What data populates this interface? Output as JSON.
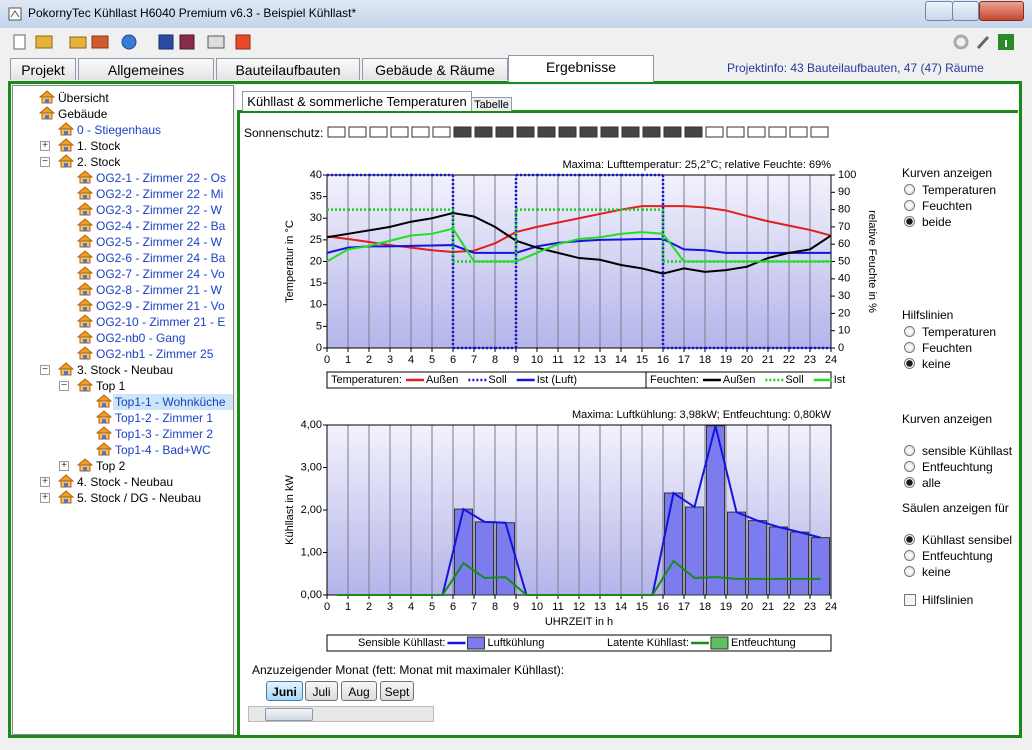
{
  "window": {
    "title": "PokornyTec  Kühllast H6040 Premium v6.3  -  Beispiel Kühllast*"
  },
  "tabs": [
    "Projekt",
    "Allgemeines",
    "Bauteilaufbauten",
    "Gebäude & Räume",
    "Ergebnisse"
  ],
  "active_tab": 4,
  "projektinfo": "Projektinfo: 43 Bauteilaufbauten,  47 (47) Räume",
  "tree": [
    {
      "label": "Übersicht",
      "level": 0,
      "expanded": null
    },
    {
      "label": "Gebäude",
      "level": 0,
      "expanded": null
    },
    {
      "label": "0 - Stiegenhaus",
      "level": 1,
      "expanded": null,
      "color": "#1c3fc4"
    },
    {
      "label": "1. Stock",
      "level": 1,
      "expanded": false
    },
    {
      "label": "2. Stock",
      "level": 1,
      "expanded": true
    },
    {
      "label": "OG2-1 - Zimmer 22 - Os",
      "level": 2,
      "expanded": null,
      "color": "#1c3fc4"
    },
    {
      "label": "OG2-2 - Zimmer 22 - Mi",
      "level": 2,
      "expanded": null,
      "color": "#1c3fc4"
    },
    {
      "label": "OG2-3 - Zimmer 22 - W",
      "level": 2,
      "expanded": null,
      "color": "#1c3fc4"
    },
    {
      "label": "OG2-4 - Zimmer 22 - Ba",
      "level": 2,
      "expanded": null,
      "color": "#1c3fc4"
    },
    {
      "label": "OG2-5 - Zimmer 24 - W",
      "level": 2,
      "expanded": null,
      "color": "#1c3fc4"
    },
    {
      "label": "OG2-6 - Zimmer 24 - Ba",
      "level": 2,
      "expanded": null,
      "color": "#1c3fc4"
    },
    {
      "label": "OG2-7 - Zimmer 24 - Vo",
      "level": 2,
      "expanded": null,
      "color": "#1c3fc4"
    },
    {
      "label": "OG2-8 - Zimmer 21 - W",
      "level": 2,
      "expanded": null,
      "color": "#1c3fc4"
    },
    {
      "label": "OG2-9 - Zimmer 21 - Vo",
      "level": 2,
      "expanded": null,
      "color": "#1c3fc4"
    },
    {
      "label": "OG2-10 - Zimmer 21 - E",
      "level": 2,
      "expanded": null,
      "color": "#1c3fc4"
    },
    {
      "label": "OG2-nb0 - Gang",
      "level": 2,
      "expanded": null,
      "color": "#1c3fc4"
    },
    {
      "label": "OG2-nb1 - Zimmer 25",
      "level": 2,
      "expanded": null,
      "color": "#1c3fc4"
    },
    {
      "label": "3. Stock - Neubau",
      "level": 1,
      "expanded": true
    },
    {
      "label": "Top 1",
      "level": 2,
      "expanded": true
    },
    {
      "label": "Top1-1 - Wohnküche",
      "level": 3,
      "expanded": null,
      "color": "#1c3fc4",
      "selected": true
    },
    {
      "label": "Top1-2 - Zimmer 1",
      "level": 3,
      "expanded": null,
      "color": "#1c3fc4"
    },
    {
      "label": "Top1-3 - Zimmer 2",
      "level": 3,
      "expanded": null,
      "color": "#1c3fc4"
    },
    {
      "label": "Top1-4 - Bad+WC",
      "level": 3,
      "expanded": null,
      "color": "#1c3fc4"
    },
    {
      "label": "Top 2",
      "level": 2,
      "expanded": false
    },
    {
      "label": "4. Stock - Neubau",
      "level": 1,
      "expanded": false
    },
    {
      "label": "5. Stock / DG - Neubau",
      "level": 1,
      "expanded": false
    }
  ],
  "subtabs": [
    "Kühllast & sommerliche Temperaturen",
    "Tabelle"
  ],
  "sonnenschutz": {
    "label": "Sonnenschutz:",
    "hours": [
      false,
      false,
      false,
      false,
      false,
      false,
      true,
      true,
      true,
      true,
      true,
      true,
      true,
      true,
      true,
      true,
      true,
      true,
      false,
      false,
      false,
      false,
      false,
      false
    ]
  },
  "chart_data": [
    {
      "type": "line",
      "title": "Maxima:  Lufttemperatur: 25,2°C;  relative Feuchte: 69%",
      "ylabel": "Temperatur in °C",
      "y2label": "relative Feuchte in %",
      "x": [
        0,
        1,
        2,
        3,
        4,
        5,
        6,
        7,
        8,
        9,
        10,
        11,
        12,
        13,
        14,
        15,
        16,
        17,
        18,
        19,
        20,
        21,
        22,
        23,
        24
      ],
      "xlim": [
        0,
        24
      ],
      "xticks": [
        0,
        1,
        2,
        3,
        4,
        5,
        6,
        7,
        8,
        9,
        10,
        11,
        12,
        13,
        14,
        15,
        16,
        17,
        18,
        19,
        20,
        21,
        22,
        23,
        24
      ],
      "ylim": [
        0,
        40
      ],
      "yticks": [
        0,
        5,
        10,
        15,
        20,
        25,
        30,
        35,
        40
      ],
      "y2lim": [
        0,
        100
      ],
      "y2ticks": [
        0,
        10,
        20,
        30,
        40,
        50,
        60,
        70,
        80,
        90,
        100
      ],
      "grid": "x",
      "legend_groups": [
        "Temperaturen:",
        "Feuchten:"
      ],
      "series": [
        {
          "name": "Außen",
          "group": 0,
          "color": "#e01e1e",
          "values": [
            25.8,
            25.2,
            24.5,
            23.8,
            23.2,
            22.6,
            22.2,
            22.5,
            24.2,
            26.8,
            28,
            29,
            30,
            31,
            32,
            32.8,
            32.8,
            32.8,
            32.5,
            31.8,
            30.5,
            29.3,
            28.3,
            27.3,
            26
          ]
        },
        {
          "name": "Soll",
          "group": 0,
          "color": "#1414e0",
          "dash": true,
          "step": "post",
          "values": [
            40,
            40,
            40,
            40,
            40,
            40,
            0,
            0,
            0,
            40,
            40,
            40,
            40,
            40,
            40,
            40,
            0,
            0,
            0,
            0,
            0,
            0,
            0,
            0,
            0
          ]
        },
        {
          "name": "Ist (Luft)",
          "group": 0,
          "color": "#1414e0",
          "values": [
            22,
            23.2,
            23.5,
            23.5,
            23.6,
            23.7,
            23.8,
            22,
            22,
            22,
            23.5,
            24.3,
            24.7,
            25,
            25.1,
            25.2,
            25.2,
            22.8,
            22.6,
            22,
            22,
            22,
            22,
            22,
            22
          ]
        },
        {
          "name": "Außen",
          "group": 1,
          "axis": "y2",
          "color": "#000000",
          "values": [
            64,
            66,
            68,
            70,
            73,
            75,
            78,
            76,
            70,
            62,
            58,
            55,
            52,
            51,
            48,
            46,
            43,
            46,
            44,
            45,
            47,
            52,
            55,
            57,
            65
          ]
        },
        {
          "name": "Soll",
          "group": 1,
          "axis": "y2",
          "color": "#22cc22",
          "dash": true,
          "step": "post",
          "values": [
            80,
            80,
            80,
            80,
            80,
            80,
            50,
            50,
            50,
            80,
            80,
            80,
            80,
            80,
            80,
            80,
            50,
            50,
            50,
            50,
            50,
            50,
            50,
            50,
            50
          ]
        },
        {
          "name": "Ist",
          "group": 1,
          "axis": "y2",
          "color": "#22dd22",
          "values": [
            50,
            57,
            59,
            62,
            65,
            66,
            69,
            50,
            50,
            50,
            55,
            60,
            63,
            64,
            66,
            67,
            66,
            50,
            50,
            50,
            50,
            50,
            50,
            50,
            50
          ]
        }
      ]
    },
    {
      "type": "bar",
      "title": "Maxima:  Luftkühlung: 3,98kW;  Entfeuchtung: 0,80kW",
      "ylabel": "Kühllast in kW",
      "xlabel": "UHRZEIT in h",
      "x": [
        0.5,
        1.5,
        2.5,
        3.5,
        4.5,
        5.5,
        6.5,
        7.5,
        8.5,
        9.5,
        10.5,
        11.5,
        12.5,
        13.5,
        14.5,
        15.5,
        16.5,
        17.5,
        18.5,
        19.5,
        20.5,
        21.5,
        22.5,
        23.5
      ],
      "xlim": [
        0,
        24
      ],
      "xticks": [
        0,
        1,
        2,
        3,
        4,
        5,
        6,
        7,
        8,
        9,
        10,
        11,
        12,
        13,
        14,
        15,
        16,
        17,
        18,
        19,
        20,
        21,
        22,
        23,
        24
      ],
      "ylim": [
        0,
        4
      ],
      "yticks": [
        {
          "value": 0,
          "label": "0,00"
        },
        {
          "value": 1,
          "label": "1,00"
        },
        {
          "value": 2,
          "label": "2,00"
        },
        {
          "value": 3,
          "label": "3,00"
        },
        {
          "value": 4,
          "label": "4,00"
        }
      ],
      "grid": "x",
      "series": [
        {
          "name": "Sensible Kühllast:",
          "bar_name": "Luftkühlung",
          "color": "#1414e0",
          "bar_color": "#7c7cee",
          "bars": true,
          "values": [
            0,
            0,
            0,
            0,
            0,
            0,
            2.02,
            1.72,
            1.7,
            0,
            0,
            0,
            0,
            0,
            0,
            0,
            2.4,
            2.07,
            3.98,
            1.95,
            1.75,
            1.6,
            1.48,
            1.35
          ]
        },
        {
          "name": "Latente Kühllast:",
          "bar_name": "Entfeuchtung",
          "color": "#1a8a1a",
          "bar_color": "#5cc35c",
          "bars": false,
          "values": [
            0,
            0,
            0,
            0,
            0,
            0,
            0.75,
            0.4,
            0.42,
            0,
            0,
            0,
            0,
            0,
            0,
            0,
            0.8,
            0.4,
            0.42,
            0.38,
            0.38,
            0.38,
            0.38,
            0.38
          ]
        }
      ]
    }
  ],
  "options": [
    {
      "title": "Kurven anzeigen",
      "items": [
        "Temperaturen",
        "Feuchten",
        "beide"
      ],
      "selected": 2
    },
    {
      "title": "Hilfslinien",
      "items": [
        "Temperaturen",
        "Feuchten",
        "keine"
      ],
      "selected": 2
    },
    {
      "title": "Kurven anzeigen",
      "items": [
        "sensible Kühllast",
        "Entfeuchtung",
        "alle"
      ],
      "selected": 2
    },
    {
      "title": "Säulen anzeigen für",
      "items": [
        "Kühllast sensibel",
        "Entfeuchtung",
        "keine"
      ],
      "selected": 0
    }
  ],
  "checkbox": {
    "label": "Hilfslinien",
    "checked": false
  },
  "month_prompt": "Anzuzeigender Monat (fett: Monat mit maximaler Kühllast):",
  "months": [
    "Juni",
    "Juli",
    "Aug",
    "Sept"
  ],
  "selected_month": 0
}
